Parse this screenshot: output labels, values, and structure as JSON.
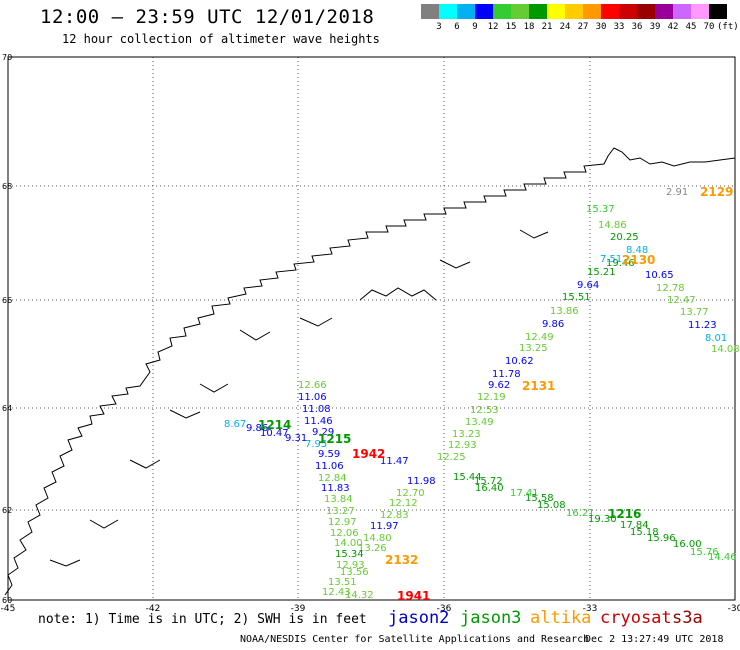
{
  "header": {
    "title": "12:00 – 23:59 UTC 12/01/2018",
    "subtitle": "12 hour collection of altimeter wave heights"
  },
  "colorbar": {
    "colors": [
      "#808080",
      "#00ffff",
      "#00b0f0",
      "#0000ff",
      "#33cc33",
      "#66cc33",
      "#009900",
      "#ffff00",
      "#ffcc00",
      "#ff9900",
      "#ff0000",
      "#cc0000",
      "#990000",
      "#990099",
      "#cc66ff",
      "#ff99ff",
      "#000000"
    ],
    "labels": [
      "3",
      "6",
      "9",
      "12",
      "15",
      "18",
      "21",
      "24",
      "27",
      "30",
      "33",
      "36",
      "39",
      "42",
      "45",
      "70",
      "(ft)"
    ]
  },
  "axes": {
    "lon_labels": [
      "-45",
      "-42",
      "-39",
      "-36",
      "-33",
      "-30"
    ],
    "lat_labels": [
      "70",
      "68",
      "66",
      "64",
      "62",
      "60"
    ]
  },
  "observations": [
    {
      "t": "2.91",
      "c": "#888888"
    },
    {
      "t": "15.37",
      "c": "#33cc33"
    },
    {
      "t": "14.86",
      "c": "#66cc33"
    },
    {
      "t": "20.25",
      "c": "#009900"
    },
    {
      "t": "8.48",
      "c": "#00b0f0"
    },
    {
      "t": "7.51",
      "c": "#00b0f0"
    },
    {
      "t": "19.46",
      "c": "#009900"
    },
    {
      "t": "15.21",
      "c": "#009900"
    },
    {
      "t": "10.65",
      "c": "#0000ff"
    },
    {
      "t": "9.64",
      "c": "#0000ff"
    },
    {
      "t": "12.78",
      "c": "#66cc33"
    },
    {
      "t": "15.51",
      "c": "#009900"
    },
    {
      "t": "12.47",
      "c": "#66cc33"
    },
    {
      "t": "13.86",
      "c": "#66cc33"
    },
    {
      "t": "13.77",
      "c": "#66cc33"
    },
    {
      "t": "9.86",
      "c": "#0000ff"
    },
    {
      "t": "11.23",
      "c": "#0000ff"
    },
    {
      "t": "12.49",
      "c": "#66cc33"
    },
    {
      "t": "8.01",
      "c": "#00b0f0"
    },
    {
      "t": "13.25",
      "c": "#66cc33"
    },
    {
      "t": "14.08",
      "c": "#66cc33"
    },
    {
      "t": "10.62",
      "c": "#0000ff"
    },
    {
      "t": "11.78",
      "c": "#0000ff"
    },
    {
      "t": "9.62",
      "c": "#0000ff"
    },
    {
      "t": "12.19",
      "c": "#66cc33"
    },
    {
      "t": "12.53",
      "c": "#66cc33"
    },
    {
      "t": "13.49",
      "c": "#66cc33"
    },
    {
      "t": "13.23",
      "c": "#66cc33"
    },
    {
      "t": "12.93",
      "c": "#66cc33"
    },
    {
      "t": "12.25",
      "c": "#66cc33"
    },
    {
      "t": "12.66",
      "c": "#66cc33"
    },
    {
      "t": "11.06",
      "c": "#0000ff"
    },
    {
      "t": "11.08",
      "c": "#0000ff"
    },
    {
      "t": "11.46",
      "c": "#0000ff"
    },
    {
      "t": "9.29",
      "c": "#0000ff"
    },
    {
      "t": "8.67",
      "c": "#00b0f0"
    },
    {
      "t": "9.86",
      "c": "#0000ff"
    },
    {
      "t": "10.47",
      "c": "#0000ff"
    },
    {
      "t": "9.31",
      "c": "#0000ff"
    },
    {
      "t": "7.95",
      "c": "#00b0f0"
    },
    {
      "t": "9.59",
      "c": "#0000ff"
    },
    {
      "t": "11.06",
      "c": "#0000ff"
    },
    {
      "t": "11.47",
      "c": "#0000ff"
    },
    {
      "t": "12.84",
      "c": "#66cc33"
    },
    {
      "t": "11.98",
      "c": "#0000ff"
    },
    {
      "t": "15.44",
      "c": "#009900"
    },
    {
      "t": "15.72",
      "c": "#009900"
    },
    {
      "t": "16.40",
      "c": "#009900"
    },
    {
      "t": "11.83",
      "c": "#0000ff"
    },
    {
      "t": "12.70",
      "c": "#66cc33"
    },
    {
      "t": "13.84",
      "c": "#66cc33"
    },
    {
      "t": "12.12",
      "c": "#66cc33"
    },
    {
      "t": "17.41",
      "c": "#33cc33"
    },
    {
      "t": "15.58",
      "c": "#009900"
    },
    {
      "t": "15.08",
      "c": "#009900"
    },
    {
      "t": "16.21",
      "c": "#33cc33"
    },
    {
      "t": "19.30",
      "c": "#009900"
    },
    {
      "t": "17.84",
      "c": "#009900"
    },
    {
      "t": "13.27",
      "c": "#66cc33"
    },
    {
      "t": "12.83",
      "c": "#66cc33"
    },
    {
      "t": "12.97",
      "c": "#66cc33"
    },
    {
      "t": "11.97",
      "c": "#0000ff"
    },
    {
      "t": "15.18",
      "c": "#009900"
    },
    {
      "t": "15.96",
      "c": "#009900"
    },
    {
      "t": "16.00",
      "c": "#009900"
    },
    {
      "t": "15.76",
      "c": "#33cc33"
    },
    {
      "t": "14.46",
      "c": "#33cc33"
    },
    {
      "t": "12.06",
      "c": "#66cc33"
    },
    {
      "t": "14.80",
      "c": "#66cc33"
    },
    {
      "t": "14.00",
      "c": "#66cc33"
    },
    {
      "t": "13.26",
      "c": "#66cc33"
    },
    {
      "t": "15.34",
      "c": "#009900"
    },
    {
      "t": "12.93",
      "c": "#66cc33"
    },
    {
      "t": "13.56",
      "c": "#66cc33"
    },
    {
      "t": "13.51",
      "c": "#66cc33"
    },
    {
      "t": "12.43",
      "c": "#66cc33"
    },
    {
      "t": "14.32",
      "c": "#66cc33"
    }
  ],
  "pass_times": [
    {
      "t": "2129",
      "c": "#ff9900"
    },
    {
      "t": "2130",
      "c": "#ff9900"
    },
    {
      "t": "2131",
      "c": "#ff9900"
    },
    {
      "t": "1214",
      "c": "#009900"
    },
    {
      "t": "1215",
      "c": "#009900"
    },
    {
      "t": "1942",
      "c": "#ff0000"
    },
    {
      "t": "1216",
      "c": "#009900"
    },
    {
      "t": "2132",
      "c": "#ff9900"
    },
    {
      "t": "1941",
      "c": "#ff0000"
    }
  ],
  "footer": {
    "note": "note: 1) Time is in UTC; 2) SWH is in feet",
    "satellites": [
      {
        "name": "jason2",
        "color": "#0000cc"
      },
      {
        "name": "jason3",
        "color": "#009900"
      },
      {
        "name": "altika",
        "color": "#ff9900"
      },
      {
        "name": "cryosat",
        "color": "#cc0000"
      },
      {
        "name": "s3a",
        "color": "#990000"
      }
    ],
    "credit": "NOAA/NESDIS Center for Satellite Applications and Research",
    "timestamp": "Dec  2 13:27:49 UTC 2018"
  }
}
